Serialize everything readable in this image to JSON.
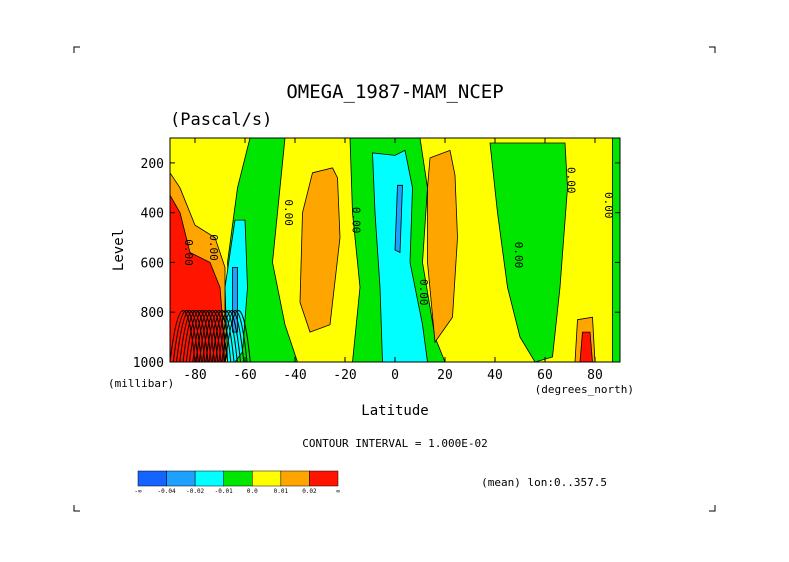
{
  "chart_data": {
    "type": "contour",
    "title": "OMEGA_1987-MAM_NCEP",
    "subtitle": "(Pascal/s)",
    "xlabel": "Latitude",
    "ylabel": "Level",
    "x_unit": "(degrees_north)",
    "y_unit": "(millibar)",
    "xlim": [
      -90,
      90
    ],
    "ylim": [
      1000,
      100
    ],
    "x_ticks": [
      -80,
      -60,
      -40,
      -20,
      0,
      20,
      40,
      60,
      80
    ],
    "y_ticks": [
      200,
      400,
      600,
      800,
      1000
    ],
    "contour_interval_text": "CONTOUR INTERVAL = 1.000E-02",
    "footnote": "(mean) lon:0..357.5",
    "colorbar": {
      "colors": [
        "#1464ff",
        "#1ea0ff",
        "#00ffff",
        "#00e600",
        "#ffff00",
        "#ffa500",
        "#ff1400"
      ],
      "tick_labels": [
        "-∞",
        "-0.04",
        "-0.02",
        "-0.01",
        "0.0",
        "0.01",
        "0.02",
        "∞"
      ]
    },
    "contour_labels": [
      {
        "text": "0.00",
        "lat": -44,
        "p": 400
      },
      {
        "text": "0.00",
        "lat": -17,
        "p": 430
      },
      {
        "text": "0.00",
        "lat": 10,
        "p": 720
      },
      {
        "text": "0.00",
        "lat": 48,
        "p": 570
      },
      {
        "text": "0.00",
        "lat": 69,
        "p": 270
      },
      {
        "text": "0.00",
        "lat": 84,
        "p": 370
      },
      {
        "text": "0.00",
        "lat": -84,
        "p": 560
      },
      {
        "text": "0.00",
        "lat": -74,
        "p": 540
      }
    ],
    "regions": {
      "background": "#ffff00",
      "polygons": [
        {
          "fill": "#00e600",
          "pts": [
            [
              -58,
              100
            ],
            [
              -44,
              100
            ],
            [
              -46,
              300
            ],
            [
              -49,
              600
            ],
            [
              -44,
              850
            ],
            [
              -39,
              1000
            ],
            [
              -65,
              1000
            ],
            [
              -67,
              600
            ],
            [
              -63,
              300
            ]
          ]
        },
        {
          "fill": "#00ffff",
          "pts": [
            [
              -64,
              430
            ],
            [
              -60,
              430
            ],
            [
              -59,
              700
            ],
            [
              -61,
              960
            ],
            [
              -64,
              1000
            ],
            [
              -67,
              1000
            ],
            [
              -68,
              700
            ]
          ]
        },
        {
          "fill": "#1ea0ff",
          "pts": [
            [
              -65,
              620
            ],
            [
              -63,
              620
            ],
            [
              -63,
              880
            ],
            [
              -65,
              880
            ]
          ]
        },
        {
          "fill": "#ffa500",
          "pts": [
            [
              -33,
              240
            ],
            [
              -25,
              220
            ],
            [
              -23,
              260
            ],
            [
              -22,
              500
            ],
            [
              -26,
              850
            ],
            [
              -34,
              880
            ],
            [
              -38,
              760
            ],
            [
              -37,
              400
            ]
          ]
        },
        {
          "fill": "#00e600",
          "pts": [
            [
              -18,
              100
            ],
            [
              10,
              100
            ],
            [
              13,
              300
            ],
            [
              11,
              600
            ],
            [
              16,
              900
            ],
            [
              20,
              1000
            ],
            [
              -17,
              1000
            ],
            [
              -14,
              700
            ],
            [
              -17,
              400
            ]
          ]
        },
        {
          "fill": "#00ffff",
          "pts": [
            [
              -9,
              160
            ],
            [
              0,
              170
            ],
            [
              4,
              150
            ],
            [
              7,
              300
            ],
            [
              6,
              600
            ],
            [
              11,
              850
            ],
            [
              13,
              1000
            ],
            [
              -5,
              1000
            ],
            [
              -6,
              700
            ],
            [
              -8,
              400
            ]
          ]
        },
        {
          "fill": "#1ea0ff",
          "pts": [
            [
              1,
              290
            ],
            [
              3,
              290
            ],
            [
              2,
              560
            ],
            [
              0,
              550
            ]
          ]
        },
        {
          "fill": "#ffa500",
          "pts": [
            [
              14,
              180
            ],
            [
              22,
              150
            ],
            [
              24,
              250
            ],
            [
              25,
              500
            ],
            [
              23,
              820
            ],
            [
              16,
              920
            ],
            [
              13,
              600
            ],
            [
              13,
              300
            ]
          ]
        },
        {
          "fill": "#00e600",
          "pts": [
            [
              38,
              120
            ],
            [
              47,
              120
            ],
            [
              58,
              120
            ],
            [
              68,
              120
            ],
            [
              69,
              300
            ],
            [
              66,
              700
            ],
            [
              63,
              980
            ],
            [
              56,
              1000
            ],
            [
              50,
              900
            ],
            [
              45,
              700
            ],
            [
              41,
              400
            ]
          ]
        },
        {
          "fill": "#00e600",
          "pts": [
            [
              87,
              100
            ],
            [
              90,
              100
            ],
            [
              90,
              1000
            ],
            [
              87,
              1000
            ]
          ]
        },
        {
          "fill": "#ffa500",
          "pts": [
            [
              73,
              830
            ],
            [
              79,
              820
            ],
            [
              80,
              1000
            ],
            [
              72,
              1000
            ]
          ]
        },
        {
          "fill": "#ff1400",
          "pts": [
            [
              75,
              880
            ],
            [
              78,
              880
            ],
            [
              79,
              1000
            ],
            [
              74,
              1000
            ]
          ]
        },
        {
          "fill": "#ffa500",
          "pts": [
            [
              -90,
              240
            ],
            [
              -86,
              300
            ],
            [
              -80,
              450
            ],
            [
              -72,
              500
            ],
            [
              -68,
              620
            ],
            [
              -68,
              1000
            ],
            [
              -90,
              1000
            ]
          ]
        },
        {
          "fill": "#ff1400",
          "pts": [
            [
              -90,
              330
            ],
            [
              -86,
              400
            ],
            [
              -82,
              560
            ],
            [
              -74,
              600
            ],
            [
              -70,
              700
            ],
            [
              -68,
              950
            ],
            [
              -68,
              1000
            ],
            [
              -90,
              1000
            ]
          ]
        }
      ]
    }
  }
}
